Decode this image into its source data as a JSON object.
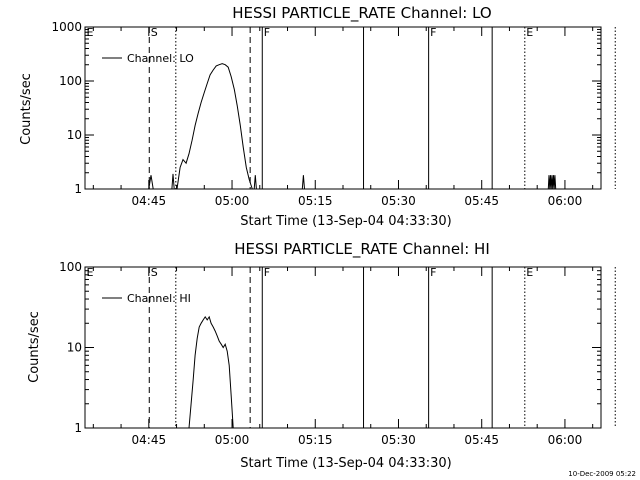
{
  "timestamp": "10-Dec-2009 05:22",
  "chart_data": [
    {
      "type": "line",
      "title": "HESSI PARTICLE_RATE Channel: LO",
      "xlabel": "Start Time (13-Sep-04 04:33:30)",
      "ylabel": "Counts/sec",
      "y_scale": "log",
      "ylim": [
        1,
        1000
      ],
      "y_ticks": [
        "1",
        "10",
        "100",
        "1000"
      ],
      "xlim_seconds_from_start": [
        0,
        5580
      ],
      "x_ticks": [
        "04:45",
        "05:00",
        "05:15",
        "05:30",
        "05:45",
        "06:00"
      ],
      "legend": {
        "label": "Channel: LO",
        "placement": "top-left"
      },
      "grid": false,
      "markers": [
        {
          "label": "E",
          "time": "04:33:30",
          "style": "solid"
        },
        {
          "label": "S",
          "time": "04:45:05",
          "style": "dashed"
        },
        {
          "label": "",
          "time": "04:49:52",
          "style": "dotted"
        },
        {
          "label": "",
          "time": "05:03:16",
          "style": "dashed"
        },
        {
          "label": "F",
          "time": "05:05:27",
          "style": "solid"
        },
        {
          "label": "",
          "time": "05:23:42",
          "style": "solid"
        },
        {
          "label": "F",
          "time": "05:35:26",
          "style": "solid"
        },
        {
          "label": "",
          "time": "05:46:53",
          "style": "solid"
        },
        {
          "label": "E",
          "time": "05:52:46",
          "style": "dotted"
        },
        {
          "label": "",
          "time": "06:09:04",
          "style": "dotted"
        }
      ],
      "series": [
        {
          "name": "Channel: LO",
          "segments": [
            [
              [
                "04:45:00",
                1
              ],
              [
                "04:45:24",
                1.8
              ],
              [
                "04:45:48",
                1
              ]
            ],
            [
              [
                "04:49:10",
                1
              ],
              [
                "04:49:22",
                1.9
              ],
              [
                "04:49:35",
                1
              ]
            ],
            [
              [
                "04:50:05",
                1
              ],
              [
                "04:50:38",
                2.5
              ],
              [
                "04:51:10",
                3.5
              ],
              [
                "04:51:43",
                3
              ],
              [
                "04:52:15",
                4.5
              ],
              [
                "04:52:48",
                8
              ],
              [
                "04:53:21",
                15
              ],
              [
                "04:53:53",
                25
              ],
              [
                "04:54:26",
                40
              ],
              [
                "04:54:58",
                60
              ],
              [
                "04:55:31",
                90
              ],
              [
                "04:56:03",
                130
              ],
              [
                "04:56:36",
                160
              ],
              [
                "04:57:09",
                190
              ],
              [
                "04:57:41",
                200
              ],
              [
                "04:58:14",
                210
              ],
              [
                "04:58:46",
                200
              ],
              [
                "04:59:19",
                180
              ],
              [
                "04:59:51",
                120
              ],
              [
                "05:00:24",
                70
              ],
              [
                "05:00:56",
                35
              ],
              [
                "05:01:29",
                15
              ],
              [
                "05:02:01",
                6
              ],
              [
                "05:02:34",
                2.5
              ],
              [
                "05:03:06",
                1.5
              ],
              [
                "05:03:39",
                1
              ]
            ],
            [
              [
                "05:04:00",
                1
              ],
              [
                "05:04:12",
                1.8
              ],
              [
                "05:04:24",
                1
              ]
            ],
            [
              [
                "05:12:40",
                1
              ],
              [
                "05:12:52",
                1.8
              ],
              [
                "05:13:04",
                1
              ]
            ],
            [
              [
                "05:57:00",
                1
              ],
              [
                "05:57:08",
                1.8
              ],
              [
                "05:57:16",
                1
              ],
              [
                "05:57:24",
                1.8
              ],
              [
                "05:57:32",
                1
              ],
              [
                "05:57:40",
                1.8
              ],
              [
                "05:57:48",
                1
              ],
              [
                "05:57:56",
                1.8
              ],
              [
                "05:58:04",
                1
              ],
              [
                "05:58:12",
                1.8
              ],
              [
                "05:58:20",
                1
              ]
            ]
          ]
        }
      ]
    },
    {
      "type": "line",
      "title": "HESSI PARTICLE_RATE Channel: HI",
      "xlabel": "Start Time (13-Sep-04 04:33:30)",
      "ylabel": "Counts/sec",
      "y_scale": "log",
      "ylim": [
        1,
        100
      ],
      "y_ticks": [
        "1",
        "10",
        "100"
      ],
      "xlim_seconds_from_start": [
        0,
        5580
      ],
      "x_ticks": [
        "04:45",
        "05:00",
        "05:15",
        "05:30",
        "05:45",
        "06:00"
      ],
      "legend": {
        "label": "Channel: HI",
        "placement": "top-left"
      },
      "grid": false,
      "markers": [
        {
          "label": "E",
          "time": "04:33:30",
          "style": "solid"
        },
        {
          "label": "S",
          "time": "04:45:05",
          "style": "dashed"
        },
        {
          "label": "",
          "time": "04:49:52",
          "style": "dotted"
        },
        {
          "label": "",
          "time": "05:03:16",
          "style": "dashed"
        },
        {
          "label": "F",
          "time": "05:05:27",
          "style": "solid"
        },
        {
          "label": "",
          "time": "05:23:42",
          "style": "solid"
        },
        {
          "label": "F",
          "time": "05:35:26",
          "style": "solid"
        },
        {
          "label": "",
          "time": "05:46:53",
          "style": "solid"
        },
        {
          "label": "E",
          "time": "05:52:46",
          "style": "dotted"
        },
        {
          "label": "",
          "time": "06:09:04",
          "style": "dotted"
        }
      ],
      "series": [
        {
          "name": "Channel: HI",
          "segments": [
            [
              [
                "04:52:15",
                1
              ],
              [
                "04:52:37",
                2
              ],
              [
                "04:53:00",
                4
              ],
              [
                "04:53:21",
                8
              ],
              [
                "04:53:43",
                13
              ],
              [
                "04:54:05",
                18
              ],
              [
                "04:54:26",
                20
              ],
              [
                "04:54:48",
                22
              ],
              [
                "04:55:10",
                24
              ],
              [
                "04:55:31",
                22
              ],
              [
                "04:55:53",
                24
              ],
              [
                "04:56:14",
                20
              ],
              [
                "04:56:36",
                18
              ],
              [
                "04:56:58",
                16
              ],
              [
                "04:57:19",
                14
              ],
              [
                "04:57:41",
                12
              ],
              [
                "04:58:03",
                11
              ],
              [
                "04:58:24",
                10
              ],
              [
                "04:58:46",
                11
              ],
              [
                "04:59:08",
                9
              ],
              [
                "04:59:29",
                6
              ],
              [
                "04:59:51",
                2.5
              ],
              [
                "05:00:13",
                1
              ]
            ]
          ]
        }
      ]
    }
  ]
}
